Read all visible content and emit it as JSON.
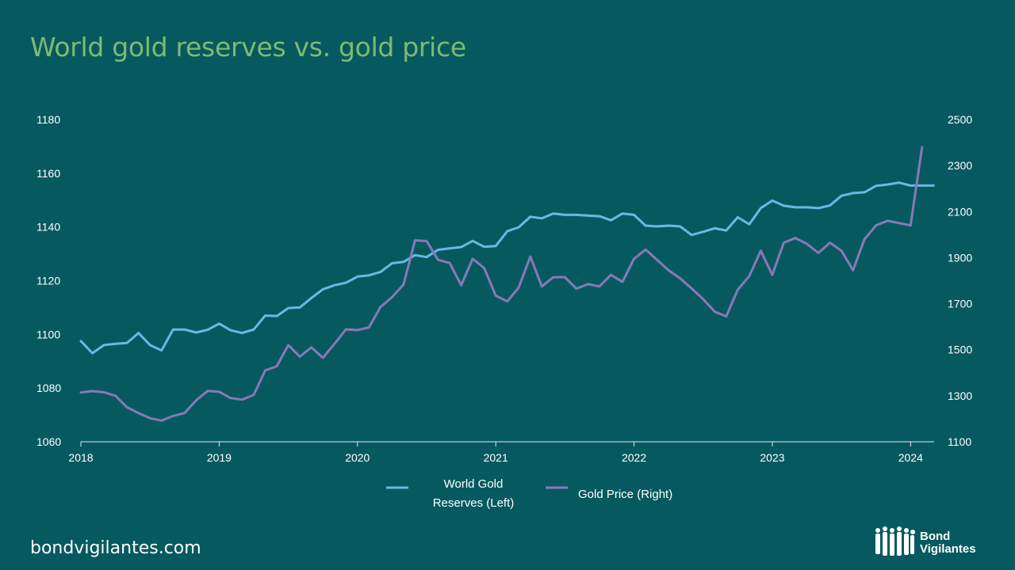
{
  "title": "World gold reserves vs. gold price",
  "footer": {
    "site": "bondvigilantes.com",
    "brand_line1": "Bond",
    "brand_line2": "Vigilantes"
  },
  "colors": {
    "background": "#065a5f",
    "title": "#7dbb72",
    "reserves": "#6ab8e6",
    "price": "#8878b8"
  },
  "chart_data": {
    "type": "line",
    "title": "World gold reserves vs. gold price",
    "x_axis": {
      "ticks": [
        "2018",
        "2019",
        "2020",
        "2021",
        "2022",
        "2023",
        "2024"
      ],
      "range": [
        2018.0,
        2024.17
      ]
    },
    "y_left": {
      "range": [
        1060,
        1180
      ],
      "ticks": [
        "1060",
        "1080",
        "1100",
        "1120",
        "1140",
        "1160",
        "1180"
      ]
    },
    "y_right": {
      "range": [
        1100,
        2500
      ],
      "ticks": [
        "1100",
        "1300",
        "1500",
        "1700",
        "1900",
        "2100",
        "2300",
        "2500"
      ]
    },
    "legend_position": "bottom",
    "series": [
      {
        "name": "World Gold Reserves (Left)",
        "legend_lines": [
          "World Gold",
          "Reserves (Left)"
        ],
        "axis": "left",
        "x_start": 2018.0,
        "x_step": 0.08333,
        "values": [
          1097.5,
          1093,
          1096,
          1096.5,
          1096.8,
          1100.5,
          1096,
          1094,
          1101.8,
          1101.8,
          1100.7,
          1101.7,
          1104,
          1101.5,
          1100.5,
          1101.8,
          1107,
          1106.8,
          1109.8,
          1110,
          1113.5,
          1116.8,
          1118.3,
          1119.2,
          1121.5,
          1122,
          1123.2,
          1126.5,
          1127,
          1129.5,
          1128.8,
          1131.5,
          1132,
          1132.5,
          1134.8,
          1132.6,
          1132.9,
          1138.4,
          1139.9,
          1143.8,
          1143.2,
          1145,
          1144.5,
          1144.5,
          1144.2,
          1144,
          1142.5,
          1145,
          1144.5,
          1140.5,
          1140.2,
          1140.5,
          1140.2,
          1137,
          1138.2,
          1139.5,
          1138.7,
          1143.6,
          1141,
          1147,
          1149.8,
          1147.9,
          1147.3,
          1147.3,
          1147,
          1148,
          1151.6,
          1152.6,
          1152.9,
          1155.3,
          1155.8,
          1156.5,
          1155.4,
          1155.4,
          1155.4
        ]
      },
      {
        "name": "Gold Price (Right)",
        "legend_lines": [
          "Gold Price (Right)"
        ],
        "axis": "right",
        "x_start": 2018.0,
        "x_step": 0.08333,
        "values": [
          1314,
          1320,
          1315,
          1300,
          1250,
          1225,
          1202,
          1192,
          1212,
          1225,
          1280,
          1321,
          1317,
          1290,
          1283,
          1304,
          1410,
          1428,
          1520,
          1470,
          1510,
          1465,
          1525,
          1588,
          1585,
          1597,
          1685,
          1728,
          1783,
          1975,
          1972,
          1890,
          1877,
          1780,
          1895,
          1855,
          1735,
          1710,
          1770,
          1905,
          1775,
          1815,
          1815,
          1765,
          1785,
          1775,
          1825,
          1795,
          1895,
          1935,
          1890,
          1845,
          1810,
          1766,
          1720,
          1665,
          1645,
          1760,
          1820,
          1930,
          1825,
          1965,
          1985,
          1960,
          1920,
          1965,
          1930,
          1845,
          1980,
          2040,
          2060,
          2050,
          2040,
          2380
        ]
      }
    ]
  }
}
